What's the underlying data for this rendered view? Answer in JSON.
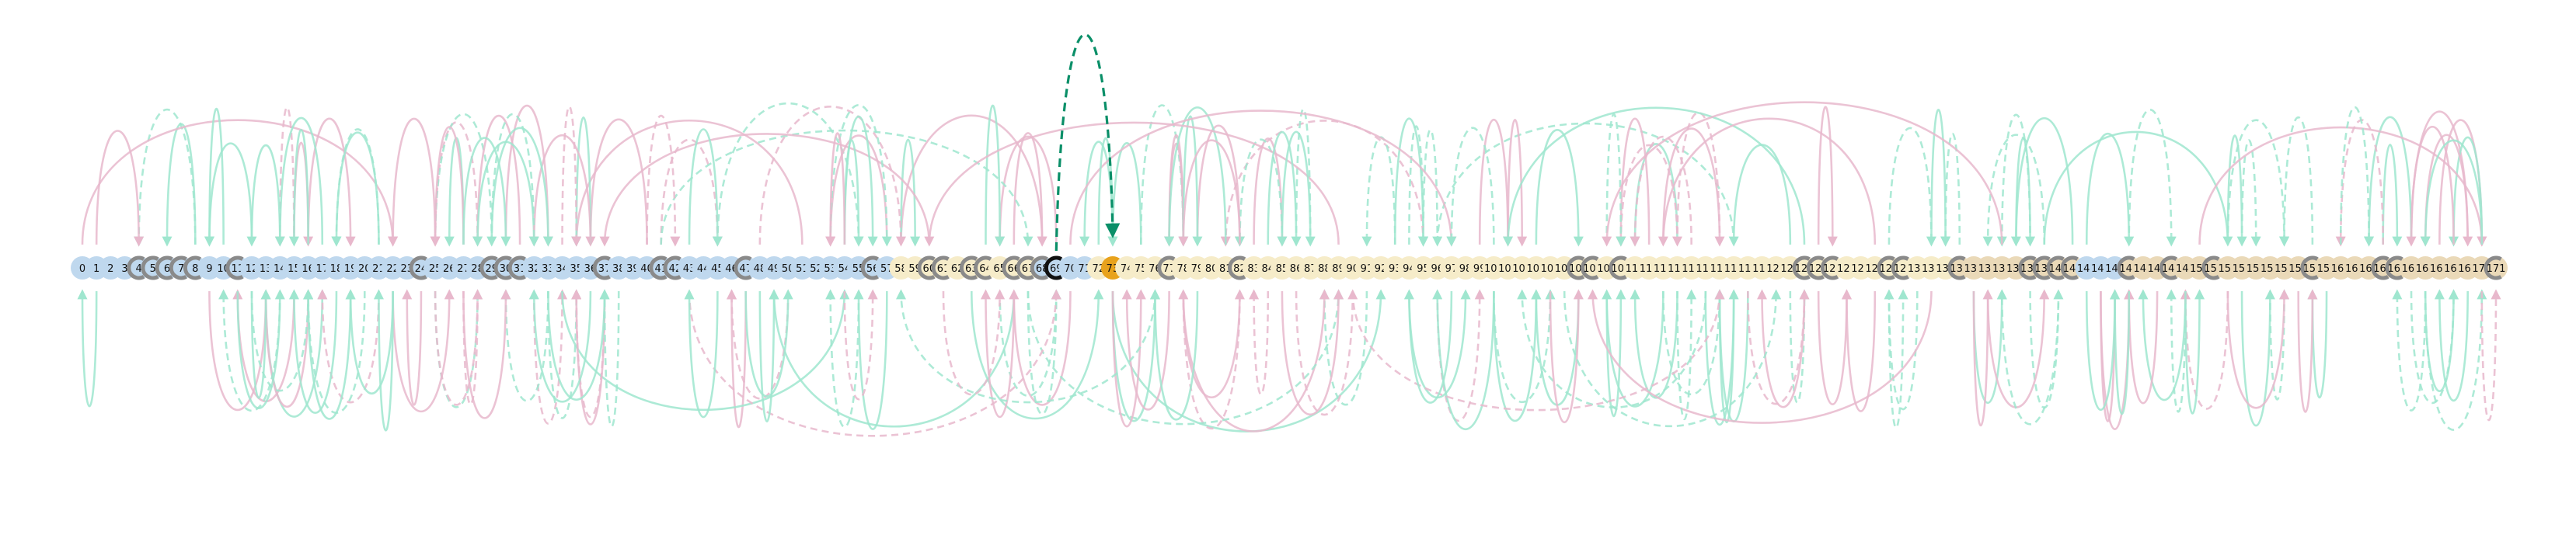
{
  "colors": {
    "teal": "#9fe6cf",
    "pink": "#e8b8cc",
    "highlight": "#0a8f68",
    "node_blue": "#bfd8ee",
    "node_cream": "#f6ecc9",
    "node_tan": "#ead9b8",
    "node_orange": "#e8a21c",
    "node_ring": "#8a8a8a",
    "node_ring_dark": "#111111",
    "label": "#111111"
  },
  "diagram": {
    "first_row": [
      "0",
      "1",
      "2",
      "3",
      "4",
      "5",
      "6",
      "7",
      "8",
      "9",
      "10",
      "11",
      "12",
      "13",
      "14",
      "15",
      "16",
      "17",
      "18",
      "19",
      "20",
      "21",
      "22",
      "23",
      "24",
      "25",
      "26",
      "27",
      "28",
      "29",
      "30",
      "31",
      "32",
      "33",
      "34",
      "35",
      "36",
      "37",
      "38",
      "39",
      "40",
      "41",
      "42",
      "43",
      "44",
      "45",
      "46",
      "47",
      "48",
      "49",
      "50",
      "51",
      "52",
      "53",
      "54",
      "55",
      "56",
      "57",
      "58",
      "59",
      "60",
      "61",
      "62",
      "63",
      "64",
      "65",
      "66",
      "67",
      "68",
      "69",
      "70",
      "71",
      "72",
      "73",
      "74",
      "75",
      "76",
      "77",
      "78",
      "79",
      "80",
      "81",
      "82",
      "83",
      "84",
      "85",
      "86",
      "87",
      "88",
      "89",
      "90",
      "91",
      "92",
      "93",
      "94",
      "95",
      "96",
      "97",
      "98",
      "99"
    ],
    "second_row": [
      "100",
      "101",
      "102",
      "103",
      "104",
      "105",
      "106",
      "107",
      "108",
      "109",
      "110",
      "111",
      "112",
      "113",
      "114",
      "115",
      "116",
      "117",
      "118",
      "119",
      "120",
      "121",
      "122",
      "123",
      "124",
      "125",
      "126",
      "127",
      "128",
      "129",
      "130",
      "131",
      "132",
      "133",
      "134",
      "135",
      "136",
      "137",
      "138",
      "139",
      "140",
      "141",
      "142",
      "143",
      "144",
      "145",
      "146",
      "147",
      "148",
      "149",
      "150",
      "151",
      "152",
      "153",
      "154",
      "155",
      "156",
      "157",
      "158",
      "159",
      "160",
      "161",
      "162",
      "163",
      "164",
      "165",
      "166",
      "167",
      "168",
      "169",
      "170",
      "171"
    ],
    "ring_nodes": [
      4,
      5,
      6,
      7,
      8,
      11,
      24,
      29,
      30,
      31,
      37,
      41,
      42,
      47,
      56,
      60,
      61,
      63,
      64,
      66,
      67,
      68,
      77,
      82,
      106,
      107,
      109,
      122,
      123,
      124,
      128,
      129,
      133,
      138,
      139,
      140,
      141,
      145,
      148,
      151,
      158,
      163,
      164,
      171
    ],
    "dark_ring_node": 69,
    "orange_node": 73,
    "cream_nodes": [
      58,
      59,
      60,
      61,
      62,
      63,
      64,
      65,
      66,
      67,
      72,
      74,
      75,
      76,
      77,
      78,
      79,
      80,
      81,
      82,
      83,
      84,
      85,
      86,
      87,
      88,
      89,
      90,
      91,
      92,
      93,
      94,
      95,
      96,
      97,
      98,
      99,
      100,
      101,
      102,
      103,
      104,
      105,
      106,
      107,
      108,
      109,
      110,
      111,
      112,
      113,
      114,
      115,
      116,
      117,
      118,
      119,
      120,
      121,
      122,
      123,
      124,
      125,
      126,
      127,
      128,
      129,
      130,
      131,
      132
    ],
    "tan_nodes": [
      133,
      134,
      135,
      136,
      137,
      138,
      139,
      140,
      141,
      145,
      146,
      147,
      148,
      149,
      150,
      151,
      152,
      153,
      154,
      155,
      156,
      157,
      158,
      159,
      160,
      161,
      162,
      163,
      164,
      165,
      166,
      167,
      168,
      169,
      170,
      171
    ]
  }
}
